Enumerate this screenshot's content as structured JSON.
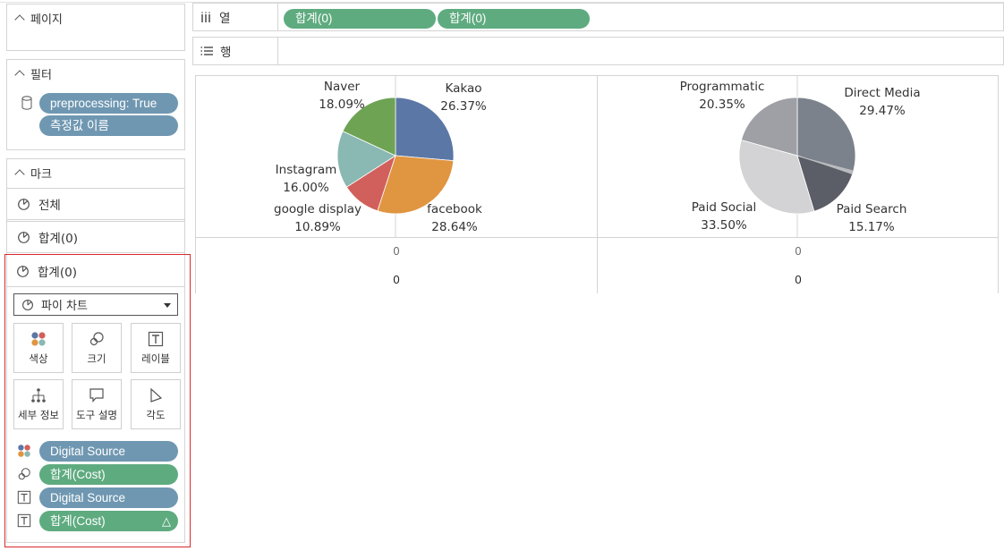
{
  "panels": {
    "pages": {
      "title": "페이지"
    },
    "filters": {
      "title": "필터",
      "pills": [
        "preprocessing: True",
        "측정값 이름"
      ]
    },
    "marks": {
      "title": "마크",
      "rows": [
        "전체",
        "합계(0)",
        "합계(0)"
      ],
      "mark_type": "파이 차트",
      "buttons": [
        "색상",
        "크기",
        "레이블",
        "세부 정보",
        "도구 설명",
        "각도"
      ],
      "fields": [
        {
          "label": "Digital Source",
          "icon": "color-icon"
        },
        {
          "label": "합계(Cost)",
          "icon": "size-icon"
        },
        {
          "label": "Digital Source",
          "icon": "label-icon"
        },
        {
          "label": "합계(Cost)",
          "icon": "label-icon",
          "delta": "△"
        }
      ]
    }
  },
  "shelves": {
    "columns": {
      "label": "열",
      "pills": [
        "합계(0)",
        "합계(0)"
      ]
    },
    "rows": {
      "label": "행"
    }
  },
  "chart_data": [
    {
      "type": "pie",
      "categories": [
        "Kakao",
        "facebook",
        "google display",
        "Instagram",
        "Naver"
      ],
      "values": [
        26.37,
        28.64,
        10.89,
        16.0,
        18.09
      ],
      "labels": [
        "26.37%",
        "28.64%",
        "10.89%",
        "16.00%",
        "18.09%"
      ],
      "colors": [
        "#5b77a5",
        "#e09540",
        "#d1605c",
        "#8ab8b3",
        "#6ea354"
      ],
      "axis_label": "0",
      "total_label": "0"
    },
    {
      "type": "pie",
      "categories": [
        "Direct Media",
        "Paid Search",
        "Paid Social",
        "Programmatic"
      ],
      "values": [
        29.47,
        15.17,
        33.5,
        20.35
      ],
      "labels": [
        "29.47%",
        "15.17%",
        "33.50%",
        "20.35%"
      ],
      "colors": [
        "#7b828c",
        "#5b5e66",
        "#d3d3d5",
        "#9ea0a5"
      ],
      "axis_label": "0",
      "total_label": "0"
    }
  ]
}
